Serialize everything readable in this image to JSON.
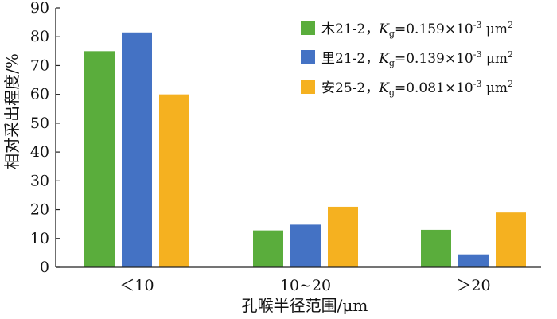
{
  "chart_data": {
    "type": "bar",
    "categories": [
      "＜10",
      "10~20",
      "＞20"
    ],
    "series": [
      {
        "name": "木21-2，Kg=0.159×10-3 μm2",
        "label_prefix": "木21-2，",
        "symbol": "K",
        "symbol_sub": "g",
        "value_text": "=0.159×10",
        "exp": "-3",
        "unit": " μm",
        "unit_sup": "2",
        "color": "#5aad3c",
        "values": [
          75,
          12.8,
          13
        ]
      },
      {
        "name": "里21-2，Kg=0.139×10-3 μm2",
        "label_prefix": "里21-2，",
        "symbol": "K",
        "symbol_sub": "g",
        "value_text": "=0.139×10",
        "exp": "-3",
        "unit": " μm",
        "unit_sup": "2",
        "color": "#4472c4",
        "values": [
          81.5,
          14.8,
          4.5
        ]
      },
      {
        "name": "安25-2，Kg=0.081×10-3 μm2",
        "label_prefix": "安25-2，",
        "symbol": "K",
        "symbol_sub": "g",
        "value_text": "=0.081×10",
        "exp": "-3",
        "unit": " μm",
        "unit_sup": "2",
        "color": "#f5b120",
        "values": [
          60,
          21,
          19
        ]
      }
    ],
    "xlabel": "孔喉半径范围/μm",
    "ylabel": "相对采出程度/%",
    "ylim": [
      0,
      90
    ],
    "yticks": [
      0,
      10,
      20,
      30,
      40,
      50,
      60,
      70,
      80,
      90
    ],
    "grid": false,
    "legend_position": "top-right"
  }
}
